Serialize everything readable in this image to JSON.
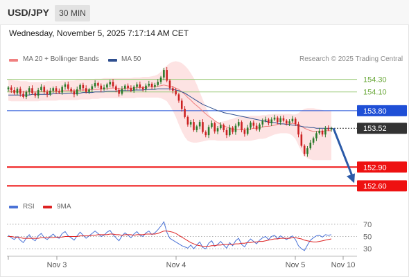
{
  "header": {
    "symbol": "USD/JPY",
    "timeframe": "30 MIN"
  },
  "datetime": "Wednesday, November 5, 2025 7:17:14 AM CET",
  "legend": {
    "ma20": "MA 20 + Bollinger Bands",
    "ma50": "MA 50",
    "credit": "Research © 2025 Trading Central",
    "rsi": "RSI",
    "rsi_ma": "9MA"
  },
  "colors": {
    "ma20": "#f08080",
    "ma50": "#2f4f8f",
    "bands": "#fde3e3",
    "support": "#ee1111",
    "resistance_green": "#9ccc7a",
    "pivot_blue": "#1f4fd6",
    "price_box": "#333333",
    "arrow": "#2b5aa8",
    "rsi": "#4a72d6",
    "rsi_ma": "#dd2222",
    "candle_up": "#2a7a2a",
    "candle_down": "#cc2222"
  },
  "chart_data": [
    {
      "type": "candlestick",
      "ylim": [
        152.45,
        154.55
      ],
      "x_ticks": [
        "Nov 3",
        "Nov 4",
        "Nov 5",
        "Nov 10"
      ],
      "levels": [
        {
          "value": 154.3,
          "label": "154.30",
          "style": "resistance_green"
        },
        {
          "value": 154.1,
          "label": "154.10",
          "style": "resistance_green"
        },
        {
          "value": 153.8,
          "label": "153.80",
          "style": "pivot_blue"
        },
        {
          "value": 152.9,
          "label": "152.90",
          "style": "support"
        },
        {
          "value": 152.6,
          "label": "152.60",
          "style": "support"
        }
      ],
      "last_price": {
        "value": 153.52,
        "label": "153.52"
      },
      "forecast_arrow": {
        "from": 153.52,
        "to": 152.6
      },
      "series": [
        {
          "name": "Price",
          "close": [
            154.17,
            154.13,
            154.08,
            154.15,
            154.07,
            154.02,
            154.1,
            154.16,
            154.08,
            154.04,
            154.13,
            154.18,
            154.1,
            154.06,
            154.12,
            154.16,
            154.11,
            154.09,
            154.18,
            154.22,
            154.15,
            154.11,
            154.06,
            154.14,
            154.21,
            154.16,
            154.1,
            154.14,
            154.19,
            154.24,
            154.2,
            154.14,
            154.17,
            154.22,
            154.26,
            154.19,
            154.13,
            154.07,
            154.15,
            154.2,
            154.16,
            154.12,
            154.18,
            154.22,
            154.17,
            154.14,
            154.2,
            154.23,
            154.18,
            154.21,
            154.26,
            154.33,
            154.45,
            154.28,
            154.16,
            154.12,
            154.06,
            153.96,
            153.83,
            153.7,
            153.58,
            153.62,
            153.49,
            153.55,
            153.62,
            153.46,
            153.41,
            153.54,
            153.6,
            153.47,
            153.52,
            153.57,
            153.49,
            153.41,
            153.53,
            153.46,
            153.56,
            153.62,
            153.49,
            153.43,
            153.53,
            153.61,
            153.56,
            153.5,
            153.58,
            153.64,
            153.66,
            153.6,
            153.66,
            153.69,
            153.62,
            153.68,
            153.64,
            153.6,
            153.63,
            153.67,
            153.59,
            153.42,
            153.24,
            153.11,
            153.2,
            153.29,
            153.36,
            153.44,
            153.48,
            153.42,
            153.52,
            153.5,
            153.52
          ]
        },
        {
          "name": "MA 20",
          "values": [
            154.12,
            154.11,
            154.11,
            154.11,
            154.1,
            154.1,
            154.1,
            154.1,
            154.1,
            154.1,
            154.1,
            154.11,
            154.11,
            154.11,
            154.11,
            154.11,
            154.11,
            154.11,
            154.12,
            154.12,
            154.12,
            154.12,
            154.12,
            154.12,
            154.13,
            154.13,
            154.13,
            154.13,
            154.14,
            154.14,
            154.14,
            154.15,
            154.15,
            154.15,
            154.16,
            154.16,
            154.16,
            154.15,
            154.15,
            154.16,
            154.16,
            154.16,
            154.16,
            154.17,
            154.17,
            154.17,
            154.17,
            154.18,
            154.18,
            154.18,
            154.19,
            154.2,
            154.21,
            154.2,
            154.19,
            154.18,
            154.16,
            154.14,
            154.1,
            154.06,
            154.01,
            153.97,
            153.92,
            153.88,
            153.84,
            153.79,
            153.75,
            153.71,
            153.68,
            153.64,
            153.61,
            153.58,
            153.56,
            153.54,
            153.52,
            153.5,
            153.5,
            153.5,
            153.5,
            153.5,
            153.5,
            153.51,
            153.52,
            153.52,
            153.53,
            153.54,
            153.55,
            153.55,
            153.56,
            153.57,
            153.58,
            153.59,
            153.59,
            153.59,
            153.59,
            153.6,
            153.59,
            153.57,
            153.55,
            153.52,
            153.5,
            153.48,
            153.47,
            153.47,
            153.47,
            153.47,
            153.48,
            153.48,
            153.48
          ]
        },
        {
          "name": "Bollinger Upper",
          "values": [
            154.3,
            154.29,
            154.28,
            154.28,
            154.27,
            154.27,
            154.27,
            154.26,
            154.26,
            154.26,
            154.26,
            154.26,
            154.26,
            154.27,
            154.27,
            154.27,
            154.27,
            154.27,
            154.28,
            154.28,
            154.28,
            154.28,
            154.28,
            154.29,
            154.29,
            154.29,
            154.3,
            154.3,
            154.3,
            154.31,
            154.31,
            154.31,
            154.32,
            154.32,
            154.32,
            154.32,
            154.32,
            154.32,
            154.32,
            154.32,
            154.32,
            154.32,
            154.33,
            154.33,
            154.33,
            154.34,
            154.34,
            154.34,
            154.35,
            154.36,
            154.38,
            154.42,
            154.48,
            154.52,
            154.56,
            154.58,
            154.59,
            154.58,
            154.56,
            154.52,
            154.47,
            154.4,
            154.32,
            154.22,
            154.1,
            153.98,
            153.86,
            153.75,
            153.68,
            153.64,
            153.62,
            153.62,
            153.63,
            153.64,
            153.66,
            153.67,
            153.69,
            153.7,
            153.71,
            153.71,
            153.71,
            153.72,
            153.72,
            153.72,
            153.72,
            153.73,
            153.73,
            153.74,
            153.74,
            153.75,
            153.75,
            153.75,
            153.75,
            153.75,
            153.75,
            153.74,
            153.74,
            153.76,
            153.8,
            153.83,
            153.84,
            153.84,
            153.84,
            153.83,
            153.82,
            153.81,
            153.8,
            153.8,
            153.79
          ]
        },
        {
          "name": "Bollinger Lower",
          "values": [
            153.96,
            153.95,
            153.95,
            153.95,
            153.95,
            153.95,
            153.95,
            153.95,
            153.95,
            153.95,
            153.95,
            153.96,
            153.96,
            153.96,
            153.96,
            153.96,
            153.96,
            153.97,
            153.97,
            153.97,
            153.97,
            153.97,
            153.97,
            153.97,
            153.98,
            153.98,
            153.98,
            153.98,
            153.99,
            153.99,
            153.99,
            154.0,
            154.0,
            154.0,
            154.0,
            154.0,
            154.0,
            154.0,
            154.0,
            154.0,
            154.0,
            154.0,
            154.0,
            154.01,
            154.01,
            154.01,
            154.01,
            154.01,
            154.01,
            154.01,
            154.01,
            154.0,
            153.98,
            153.95,
            153.88,
            153.8,
            153.7,
            153.58,
            153.47,
            153.38,
            153.32,
            153.3,
            153.29,
            153.29,
            153.3,
            153.31,
            153.32,
            153.33,
            153.33,
            153.33,
            153.32,
            153.32,
            153.32,
            153.32,
            153.32,
            153.32,
            153.32,
            153.32,
            153.32,
            153.32,
            153.32,
            153.32,
            153.33,
            153.34,
            153.35,
            153.35,
            153.36,
            153.38,
            153.4,
            153.42,
            153.43,
            153.44,
            153.44,
            153.44,
            153.43,
            153.4,
            153.35,
            153.25,
            153.15,
            153.08,
            153.04,
            153.02,
            153.01,
            153.01,
            153.01,
            153.01,
            153.01,
            153.01,
            153.01
          ]
        },
        {
          "name": "MA 50",
          "values": [
            154.05,
            154.05,
            154.05,
            154.05,
            154.05,
            154.05,
            154.05,
            154.05,
            154.06,
            154.06,
            154.06,
            154.06,
            154.06,
            154.06,
            154.06,
            154.07,
            154.07,
            154.07,
            154.07,
            154.07,
            154.08,
            154.08,
            154.08,
            154.08,
            154.08,
            154.09,
            154.09,
            154.09,
            154.09,
            154.1,
            154.1,
            154.1,
            154.1,
            154.11,
            154.11,
            154.11,
            154.11,
            154.12,
            154.12,
            154.12,
            154.12,
            154.12,
            154.13,
            154.13,
            154.13,
            154.13,
            154.14,
            154.14,
            154.14,
            154.14,
            154.15,
            154.15,
            154.15,
            154.15,
            154.15,
            154.14,
            154.13,
            154.12,
            154.1,
            154.08,
            154.05,
            154.02,
            153.99,
            153.96,
            153.93,
            153.9,
            153.88,
            153.86,
            153.84,
            153.82,
            153.8,
            153.79,
            153.77,
            153.76,
            153.75,
            153.74,
            153.73,
            153.72,
            153.71,
            153.7,
            153.69,
            153.68,
            153.67,
            153.66,
            153.65,
            153.64,
            153.63,
            153.62,
            153.61,
            153.61,
            153.6,
            153.59,
            153.59,
            153.58,
            153.58,
            153.57,
            153.57,
            153.56,
            153.55,
            153.54,
            153.54,
            153.53,
            153.53,
            153.52,
            153.52,
            153.52,
            153.52,
            153.52,
            153.52
          ]
        }
      ]
    },
    {
      "type": "line",
      "ylim": [
        20,
        80
      ],
      "y_ticks": [
        70,
        50,
        30
      ],
      "series": [
        {
          "name": "RSI",
          "values": [
            52,
            48,
            45,
            50,
            44,
            40,
            47,
            53,
            46,
            43,
            51,
            55,
            48,
            45,
            50,
            54,
            49,
            47,
            55,
            58,
            51,
            48,
            44,
            51,
            57,
            52,
            47,
            51,
            55,
            59,
            55,
            50,
            52,
            57,
            60,
            53,
            48,
            43,
            51,
            56,
            52,
            48,
            54,
            58,
            52,
            50,
            56,
            59,
            53,
            56,
            61,
            67,
            74,
            57,
            47,
            44,
            41,
            38,
            35,
            33,
            31,
            36,
            30,
            36,
            41,
            32,
            30,
            39,
            43,
            34,
            37,
            42,
            36,
            31,
            40,
            35,
            43,
            47,
            37,
            33,
            41,
            46,
            42,
            38,
            44,
            48,
            50,
            45,
            50,
            52,
            46,
            51,
            48,
            45,
            48,
            51,
            45,
            35,
            30,
            27,
            36,
            44,
            48,
            51,
            52,
            49,
            53,
            52,
            53
          ]
        },
        {
          "name": "9MA",
          "values": [
            50,
            50,
            49,
            49,
            48,
            47,
            47,
            47,
            47,
            47,
            47,
            48,
            48,
            48,
            48,
            48,
            49,
            49,
            49,
            50,
            50,
            50,
            50,
            50,
            51,
            51,
            51,
            51,
            52,
            52,
            53,
            53,
            53,
            53,
            54,
            54,
            53,
            53,
            52,
            53,
            53,
            53,
            52,
            53,
            53,
            53,
            54,
            54,
            54,
            54,
            55,
            57,
            59,
            59,
            58,
            57,
            55,
            52,
            49,
            46,
            43,
            40,
            38,
            36,
            35,
            34,
            34,
            34,
            35,
            35,
            36,
            36,
            37,
            37,
            37,
            37,
            38,
            38,
            39,
            39,
            40,
            40,
            41,
            41,
            42,
            42,
            43,
            44,
            45,
            46,
            46,
            47,
            47,
            47,
            47,
            48,
            48,
            47,
            46,
            44,
            43,
            42,
            41,
            41,
            42,
            43,
            44,
            45,
            46
          ]
        }
      ]
    }
  ]
}
